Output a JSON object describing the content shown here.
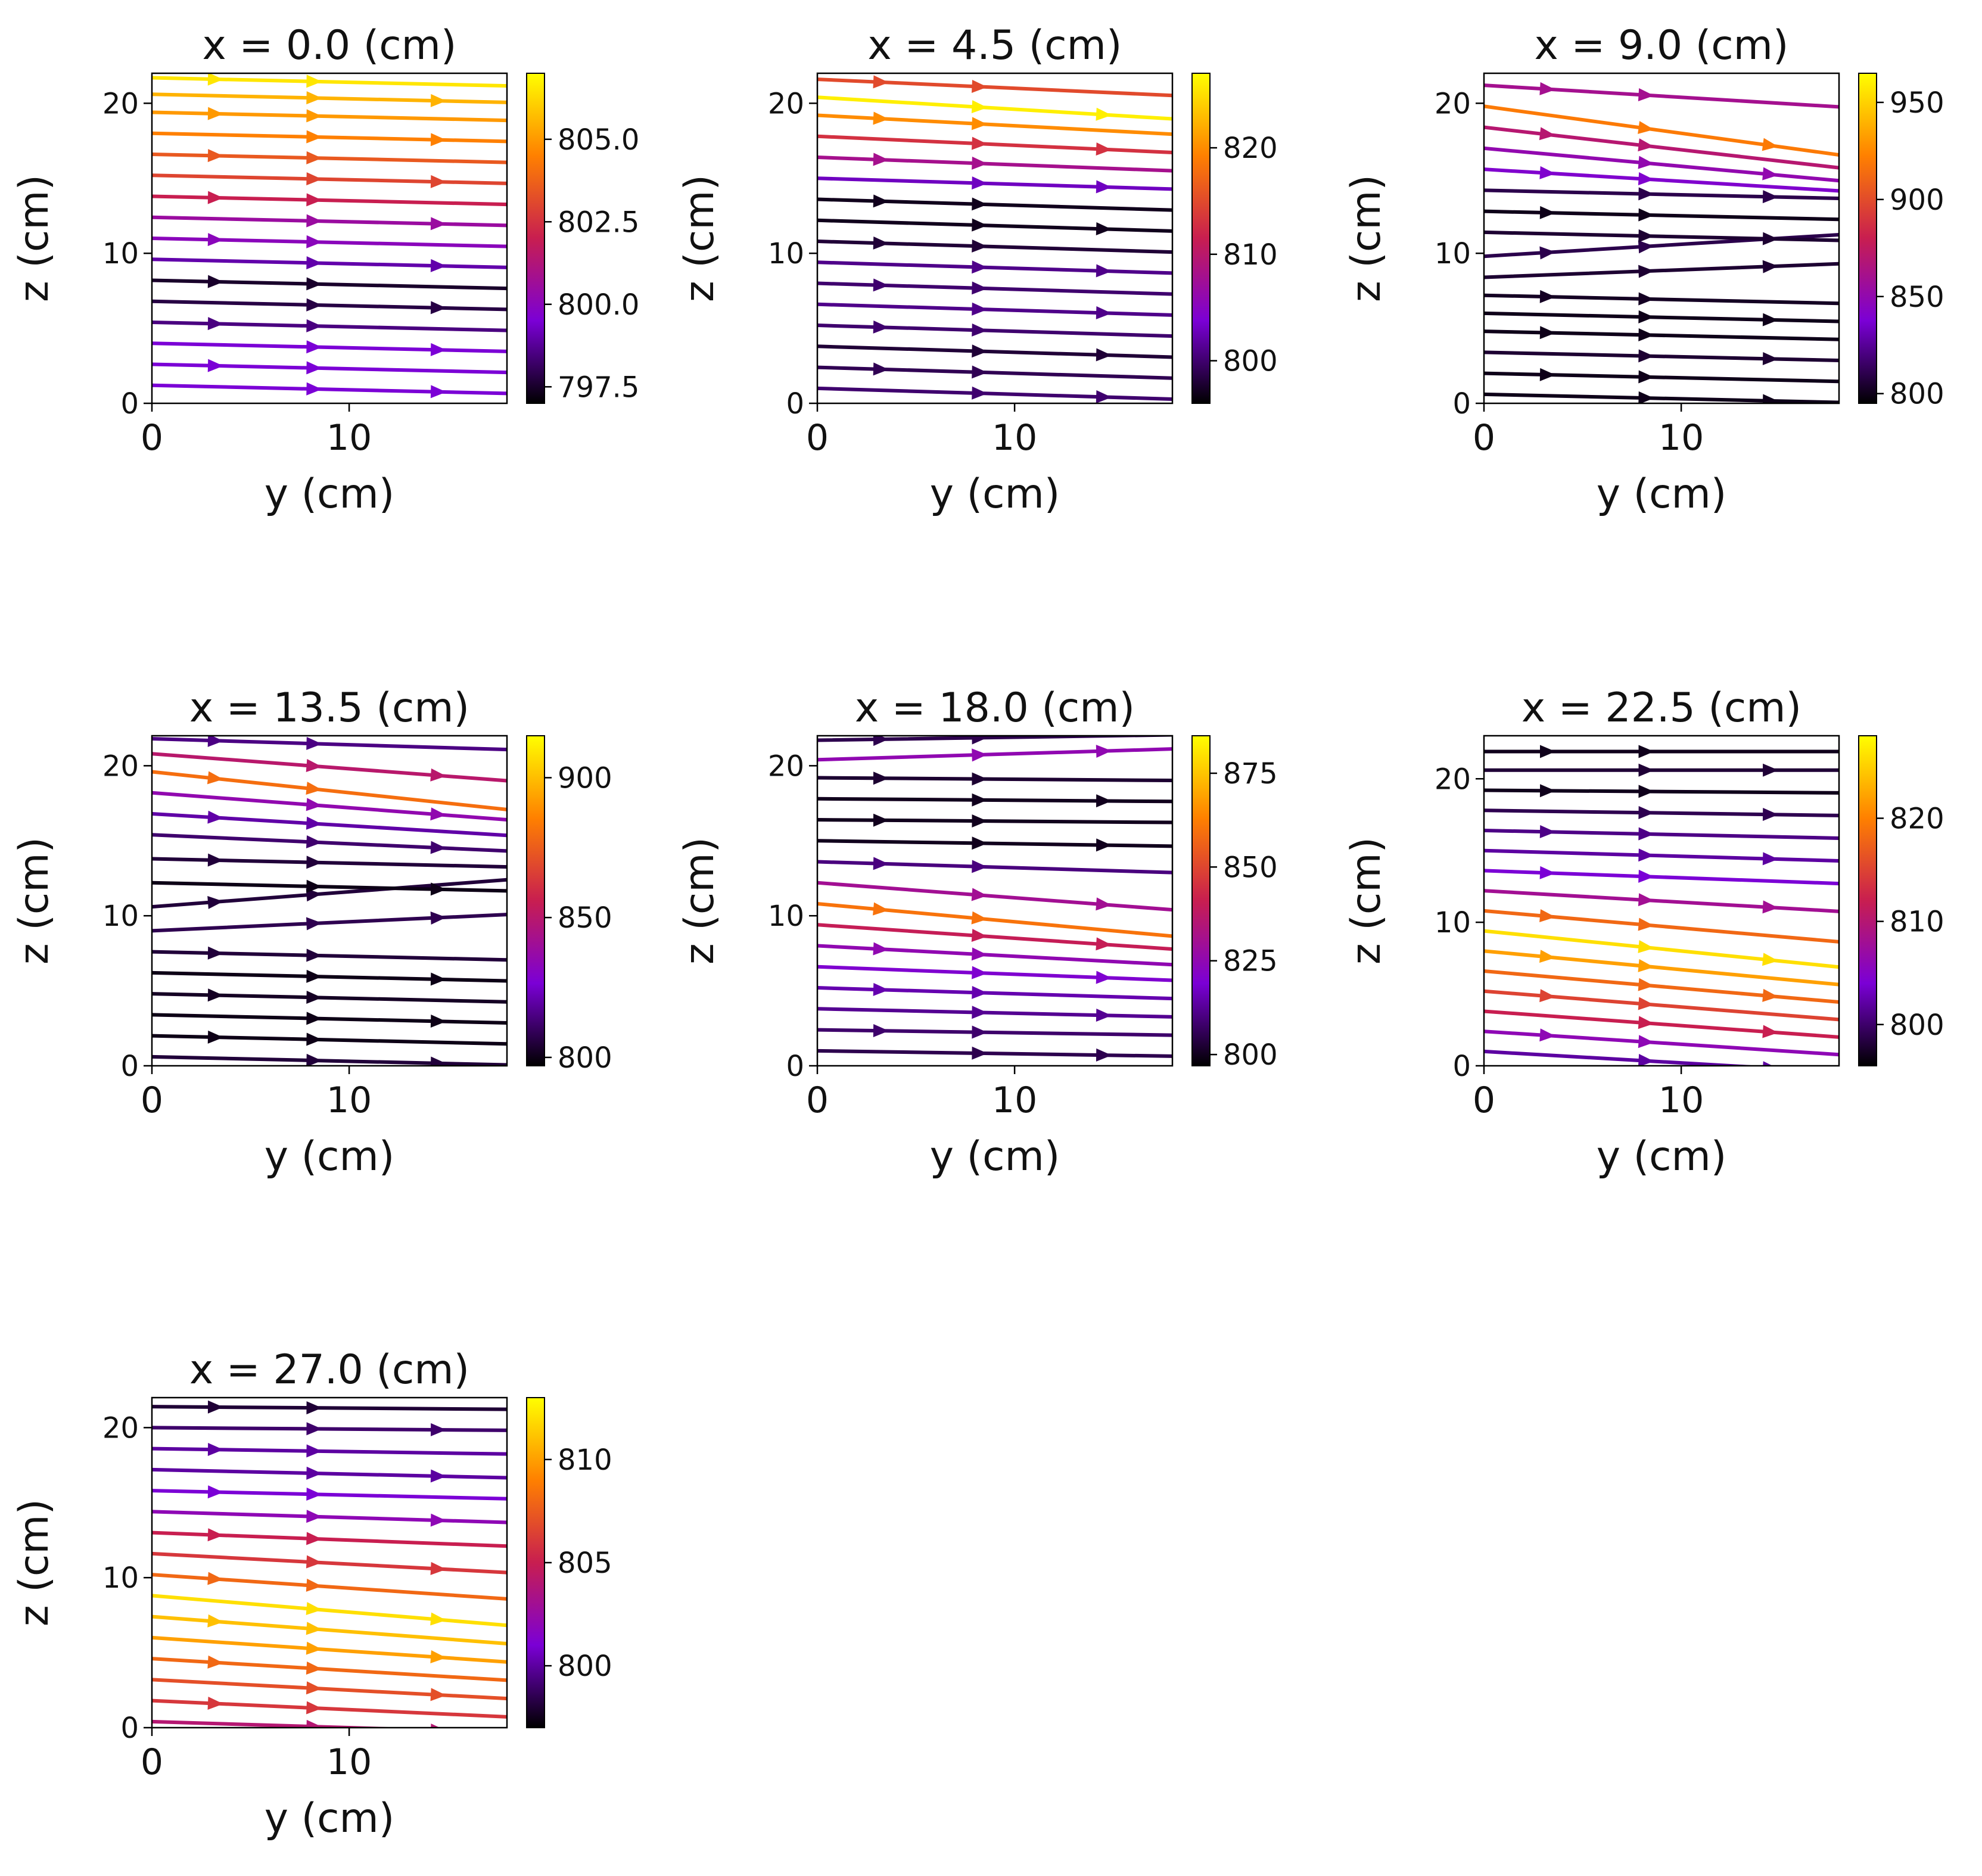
{
  "figure": {
    "colormap": "gnuplot",
    "colormap_stops": [
      "#000000",
      "#7b00d6",
      "#c81e50",
      "#ff8000",
      "#ffff00"
    ]
  },
  "chart_data": [
    {
      "type": "streamplot",
      "title": "x = 0.0 (cm)",
      "xlabel": "y (cm)",
      "ylabel": "z (cm)",
      "xlim": [
        0,
        18
      ],
      "ylim": [
        0,
        22
      ],
      "xticks": [
        0,
        10
      ],
      "xtick_labels": [
        "0",
        "10"
      ],
      "yticks": [
        0,
        10,
        20
      ],
      "ytick_labels": [
        "0",
        "10",
        "20"
      ],
      "colorbar": {
        "range": [
          797,
          807
        ],
        "ticks": [
          797.5,
          800.0,
          802.5,
          805.0
        ],
        "tick_labels": [
          "797.5",
          "800.0",
          "802.5",
          "805.0"
        ]
      },
      "streamlines": [
        {
          "z_start": 1.2,
          "slope": 0.03,
          "value": 799.5
        },
        {
          "z_start": 2.6,
          "slope": 0.03,
          "value": 799.5
        },
        {
          "z_start": 4.0,
          "slope": 0.03,
          "value": 799.5
        },
        {
          "z_start": 5.4,
          "slope": 0.03,
          "value": 798.5
        },
        {
          "z_start": 6.8,
          "slope": 0.03,
          "value": 797.8
        },
        {
          "z_start": 8.2,
          "slope": 0.03,
          "value": 797.5
        },
        {
          "z_start": 9.6,
          "slope": 0.03,
          "value": 799.0
        },
        {
          "z_start": 11.0,
          "slope": 0.03,
          "value": 800.0
        },
        {
          "z_start": 12.4,
          "slope": 0.03,
          "value": 800.5
        },
        {
          "z_start": 13.8,
          "slope": 0.03,
          "value": 802.0
        },
        {
          "z_start": 15.2,
          "slope": 0.03,
          "value": 803.0
        },
        {
          "z_start": 16.6,
          "slope": 0.03,
          "value": 803.5
        },
        {
          "z_start": 18.0,
          "slope": 0.03,
          "value": 804.5
        },
        {
          "z_start": 19.4,
          "slope": 0.03,
          "value": 805.0
        },
        {
          "z_start": 20.6,
          "slope": 0.03,
          "value": 805.5
        },
        {
          "z_start": 21.7,
          "slope": 0.03,
          "value": 806.5
        }
      ]
    },
    {
      "type": "streamplot",
      "title": "x = 4.5 (cm)",
      "xlabel": "y (cm)",
      "ylabel": "z (cm)",
      "xlim": [
        0,
        18
      ],
      "ylim": [
        0,
        22
      ],
      "xticks": [
        0,
        10
      ],
      "xtick_labels": [
        "0",
        "10"
      ],
      "yticks": [
        0,
        10,
        20
      ],
      "ytick_labels": [
        "0",
        "10",
        "20"
      ],
      "colorbar": {
        "range": [
          796,
          827
        ],
        "ticks": [
          800,
          810,
          820
        ],
        "tick_labels": [
          "800",
          "810",
          "820"
        ]
      },
      "streamlines": [
        {
          "z_start": 1.0,
          "slope": 0.04,
          "value": 800
        },
        {
          "z_start": 2.4,
          "slope": 0.04,
          "value": 799
        },
        {
          "z_start": 3.8,
          "slope": 0.04,
          "value": 798
        },
        {
          "z_start": 5.2,
          "slope": 0.04,
          "value": 800
        },
        {
          "z_start": 6.6,
          "slope": 0.04,
          "value": 801
        },
        {
          "z_start": 8.0,
          "slope": 0.04,
          "value": 800
        },
        {
          "z_start": 9.4,
          "slope": 0.04,
          "value": 801
        },
        {
          "z_start": 10.8,
          "slope": 0.04,
          "value": 798
        },
        {
          "z_start": 12.2,
          "slope": 0.04,
          "value": 797
        },
        {
          "z_start": 13.6,
          "slope": 0.04,
          "value": 797
        },
        {
          "z_start": 15.0,
          "slope": 0.04,
          "value": 803
        },
        {
          "z_start": 16.4,
          "slope": 0.05,
          "value": 808
        },
        {
          "z_start": 17.8,
          "slope": 0.06,
          "value": 813
        },
        {
          "z_start": 19.2,
          "slope": 0.07,
          "value": 820
        },
        {
          "z_start": 20.4,
          "slope": 0.08,
          "value": 826
        },
        {
          "z_start": 21.6,
          "slope": 0.06,
          "value": 815
        }
      ]
    },
    {
      "type": "streamplot",
      "title": "x = 9.0 (cm)",
      "xlabel": "y (cm)",
      "ylabel": "z (cm)",
      "xlim": [
        0,
        18
      ],
      "ylim": [
        0,
        22
      ],
      "xticks": [
        0,
        10
      ],
      "xtick_labels": [
        "0",
        "10"
      ],
      "yticks": [
        0,
        10,
        20
      ],
      "ytick_labels": [
        "0",
        "10",
        "20"
      ],
      "colorbar": {
        "range": [
          795,
          965
        ],
        "ticks": [
          800,
          850,
          900,
          950
        ],
        "tick_labels": [
          "800",
          "850",
          "900",
          "950"
        ]
      },
      "streamlines": [
        {
          "z_start": 0.6,
          "slope": 0.03,
          "value": 800
        },
        {
          "z_start": 2.0,
          "slope": 0.03,
          "value": 800
        },
        {
          "z_start": 3.4,
          "slope": 0.03,
          "value": 805
        },
        {
          "z_start": 4.8,
          "slope": 0.03,
          "value": 800
        },
        {
          "z_start": 6.0,
          "slope": 0.03,
          "value": 800
        },
        {
          "z_start": 7.2,
          "slope": 0.03,
          "value": 802
        },
        {
          "z_start": 8.4,
          "slope": -0.05,
          "value": 805
        },
        {
          "z_start": 9.8,
          "slope": -0.08,
          "value": 810
        },
        {
          "z_start": 11.4,
          "slope": 0.03,
          "value": 805
        },
        {
          "z_start": 12.8,
          "slope": 0.03,
          "value": 800
        },
        {
          "z_start": 14.2,
          "slope": 0.03,
          "value": 810
        },
        {
          "z_start": 15.6,
          "slope": 0.08,
          "value": 840
        },
        {
          "z_start": 17.0,
          "slope": 0.12,
          "value": 850
        },
        {
          "z_start": 18.4,
          "slope": 0.15,
          "value": 870
        },
        {
          "z_start": 19.8,
          "slope": 0.18,
          "value": 920
        },
        {
          "z_start": 21.2,
          "slope": 0.08,
          "value": 860
        }
      ]
    },
    {
      "type": "streamplot",
      "title": "x = 13.5 (cm)",
      "xlabel": "y (cm)",
      "ylabel": "z (cm)",
      "xlim": [
        0,
        18
      ],
      "ylim": [
        0,
        22
      ],
      "xticks": [
        0,
        10
      ],
      "xtick_labels": [
        "0",
        "10"
      ],
      "yticks": [
        0,
        10,
        20
      ],
      "ytick_labels": [
        "0",
        "10",
        "20"
      ],
      "colorbar": {
        "range": [
          797,
          915
        ],
        "ticks": [
          800,
          850,
          900
        ],
        "tick_labels": [
          "800",
          "850",
          "900"
        ]
      },
      "streamlines": [
        {
          "z_start": 0.6,
          "slope": 0.03,
          "value": 805
        },
        {
          "z_start": 2.0,
          "slope": 0.03,
          "value": 800
        },
        {
          "z_start": 3.4,
          "slope": 0.03,
          "value": 800
        },
        {
          "z_start": 4.8,
          "slope": 0.03,
          "value": 802
        },
        {
          "z_start": 6.2,
          "slope": 0.03,
          "value": 800
        },
        {
          "z_start": 7.6,
          "slope": 0.03,
          "value": 805
        },
        {
          "z_start": 9.0,
          "slope": -0.06,
          "value": 808
        },
        {
          "z_start": 10.6,
          "slope": -0.1,
          "value": 805
        },
        {
          "z_start": 12.2,
          "slope": 0.03,
          "value": 800
        },
        {
          "z_start": 13.8,
          "slope": 0.03,
          "value": 805
        },
        {
          "z_start": 15.4,
          "slope": 0.06,
          "value": 812
        },
        {
          "z_start": 16.8,
          "slope": 0.08,
          "value": 820
        },
        {
          "z_start": 18.2,
          "slope": 0.1,
          "value": 835
        },
        {
          "z_start": 19.6,
          "slope": 0.14,
          "value": 880
        },
        {
          "z_start": 20.8,
          "slope": 0.1,
          "value": 850
        },
        {
          "z_start": 21.8,
          "slope": 0.04,
          "value": 815
        }
      ]
    },
    {
      "type": "streamplot",
      "title": "x = 18.0 (cm)",
      "xlabel": "y (cm)",
      "ylabel": "z (cm)",
      "xlim": [
        0,
        18
      ],
      "ylim": [
        0,
        22
      ],
      "xticks": [
        0,
        10
      ],
      "xtick_labels": [
        "0",
        "10"
      ],
      "yticks": [
        0,
        10,
        20
      ],
      "ytick_labels": [
        "0",
        "10",
        "20"
      ],
      "colorbar": {
        "range": [
          797,
          885
        ],
        "ticks": [
          800,
          825,
          850,
          875
        ],
        "tick_labels": [
          "800",
          "825",
          "850",
          "875"
        ]
      },
      "streamlines": [
        {
          "z_start": 1.0,
          "slope": 0.02,
          "value": 805
        },
        {
          "z_start": 2.4,
          "slope": 0.02,
          "value": 808
        },
        {
          "z_start": 3.8,
          "slope": 0.03,
          "value": 812
        },
        {
          "z_start": 5.2,
          "slope": 0.04,
          "value": 815
        },
        {
          "z_start": 6.6,
          "slope": 0.05,
          "value": 820
        },
        {
          "z_start": 8.0,
          "slope": 0.07,
          "value": 825
        },
        {
          "z_start": 9.4,
          "slope": 0.09,
          "value": 840
        },
        {
          "z_start": 10.8,
          "slope": 0.12,
          "value": 860
        },
        {
          "z_start": 12.2,
          "slope": 0.1,
          "value": 830
        },
        {
          "z_start": 13.6,
          "slope": 0.04,
          "value": 810
        },
        {
          "z_start": 15.0,
          "slope": 0.02,
          "value": 800
        },
        {
          "z_start": 16.4,
          "slope": 0.01,
          "value": 800
        },
        {
          "z_start": 17.8,
          "slope": 0.01,
          "value": 800
        },
        {
          "z_start": 19.2,
          "slope": 0.01,
          "value": 802
        },
        {
          "z_start": 20.4,
          "slope": -0.04,
          "value": 825
        },
        {
          "z_start": 21.7,
          "slope": -0.02,
          "value": 805
        }
      ]
    },
    {
      "type": "streamplot",
      "title": "x = 22.5 (cm)",
      "xlabel": "y (cm)",
      "ylabel": "z (cm)",
      "xlim": [
        0,
        18
      ],
      "ylim": [
        0,
        23
      ],
      "xticks": [
        0,
        10
      ],
      "xtick_labels": [
        "0",
        "10"
      ],
      "yticks": [
        0,
        10,
        20
      ],
      "ytick_labels": [
        "0",
        "10",
        "20"
      ],
      "colorbar": {
        "range": [
          796,
          828
        ],
        "ticks": [
          800,
          810,
          820
        ],
        "tick_labels": [
          "800",
          "810",
          "820"
        ]
      },
      "streamlines": [
        {
          "z_start": 1.0,
          "slope": 0.08,
          "value": 802
        },
        {
          "z_start": 2.4,
          "slope": 0.09,
          "value": 806
        },
        {
          "z_start": 3.8,
          "slope": 0.1,
          "value": 812
        },
        {
          "z_start": 5.2,
          "slope": 0.11,
          "value": 815
        },
        {
          "z_start": 6.6,
          "slope": 0.12,
          "value": 818
        },
        {
          "z_start": 8.0,
          "slope": 0.13,
          "value": 822
        },
        {
          "z_start": 9.4,
          "slope": 0.14,
          "value": 826
        },
        {
          "z_start": 10.8,
          "slope": 0.12,
          "value": 818
        },
        {
          "z_start": 12.2,
          "slope": 0.08,
          "value": 808
        },
        {
          "z_start": 13.6,
          "slope": 0.05,
          "value": 804
        },
        {
          "z_start": 15.0,
          "slope": 0.04,
          "value": 802
        },
        {
          "z_start": 16.4,
          "slope": 0.03,
          "value": 801
        },
        {
          "z_start": 17.8,
          "slope": 0.02,
          "value": 799
        },
        {
          "z_start": 19.2,
          "slope": 0.01,
          "value": 797
        },
        {
          "z_start": 20.6,
          "slope": 0.0,
          "value": 798
        },
        {
          "z_start": 21.9,
          "slope": 0.0,
          "value": 797
        }
      ]
    },
    {
      "type": "streamplot",
      "title": "x = 27.0 (cm)",
      "xlabel": "y (cm)",
      "ylabel": "z (cm)",
      "xlim": [
        0,
        18
      ],
      "ylim": [
        0,
        22
      ],
      "xticks": [
        0,
        10
      ],
      "xtick_labels": [
        "0",
        "10"
      ],
      "yticks": [
        0,
        10,
        20
      ],
      "ytick_labels": [
        "0",
        "10",
        "20"
      ],
      "colorbar": {
        "range": [
          797,
          813
        ],
        "ticks": [
          800,
          805,
          810
        ],
        "tick_labels": [
          "800",
          "805",
          "810"
        ]
      },
      "streamlines": [
        {
          "z_start": 0.4,
          "slope": 0.04,
          "value": 804
        },
        {
          "z_start": 1.8,
          "slope": 0.06,
          "value": 806
        },
        {
          "z_start": 3.2,
          "slope": 0.07,
          "value": 807
        },
        {
          "z_start": 4.6,
          "slope": 0.08,
          "value": 808
        },
        {
          "z_start": 6.0,
          "slope": 0.09,
          "value": 810
        },
        {
          "z_start": 7.4,
          "slope": 0.1,
          "value": 811
        },
        {
          "z_start": 8.8,
          "slope": 0.11,
          "value": 812
        },
        {
          "z_start": 10.2,
          "slope": 0.09,
          "value": 808
        },
        {
          "z_start": 11.6,
          "slope": 0.07,
          "value": 806
        },
        {
          "z_start": 13.0,
          "slope": 0.05,
          "value": 805
        },
        {
          "z_start": 14.4,
          "slope": 0.04,
          "value": 802
        },
        {
          "z_start": 15.8,
          "slope": 0.03,
          "value": 801
        },
        {
          "z_start": 17.2,
          "slope": 0.03,
          "value": 800
        },
        {
          "z_start": 18.6,
          "slope": 0.02,
          "value": 800
        },
        {
          "z_start": 20.0,
          "slope": 0.01,
          "value": 799
        },
        {
          "z_start": 21.4,
          "slope": 0.01,
          "value": 798
        }
      ]
    }
  ]
}
